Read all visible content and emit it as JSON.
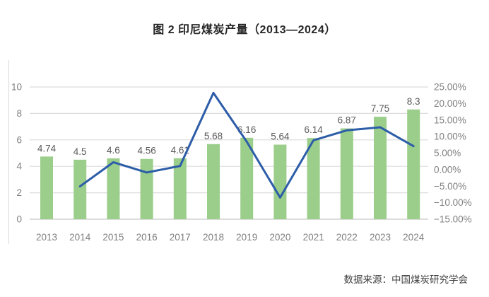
{
  "title": "图 2 印尼煤炭产量（2013—2024）",
  "source": "数据来源：中国煤炭研究学会",
  "colors": {
    "bar": "#9BCE8B",
    "line": "#2D5DA8",
    "grid": "#DCDCDC",
    "axis_line": "#C6C6C6",
    "border_line": "#D9D9D9",
    "axis_text": "#7F7F7F",
    "data_label_text": "#595959",
    "title_text": "#262626",
    "source_text": "#404040",
    "background": "#FFFFFF"
  },
  "chart_data": {
    "type": "bar",
    "title": "图 2 印尼煤炭产量（2013—2024）",
    "categories": [
      "2013",
      "2014",
      "2015",
      "2016",
      "2017",
      "2018",
      "2019",
      "2020",
      "2021",
      "2022",
      "2023",
      "2024"
    ],
    "series": [
      {
        "name": "production-bars",
        "type": "bar",
        "axis": "left",
        "values": [
          4.74,
          4.5,
          4.6,
          4.56,
          4.61,
          5.68,
          6.16,
          5.64,
          6.14,
          6.87,
          7.75,
          8.3
        ],
        "data_labels": [
          "4.74",
          "4.5",
          "4.6",
          "4.56",
          "4.61",
          "5.68",
          "6.16",
          "5.64",
          "6.14",
          "6.87",
          "7.75",
          "8.3"
        ]
      },
      {
        "name": "growth-rate-line",
        "type": "line",
        "axis": "right",
        "start_category": "2014",
        "values_pct": [
          -5.06,
          2.22,
          -0.87,
          1.1,
          23.21,
          8.45,
          -8.44,
          8.87,
          11.89,
          12.81,
          7.1
        ]
      }
    ],
    "left_axis": {
      "min": 0,
      "max": 10,
      "ticks": [
        0,
        2,
        4,
        6,
        8,
        10
      ]
    },
    "right_axis": {
      "min": -15,
      "max": 25,
      "tick_labels": [
        "25.00%",
        "20.00%",
        "15.00%",
        "10.00%",
        "5.00%",
        "0.00%",
        "−5.00%",
        "−10.00%",
        "−15.00%"
      ],
      "tick_values": [
        25,
        20,
        15,
        10,
        5,
        0,
        -5,
        -10,
        -15
      ]
    },
    "grid": true,
    "legend": false
  }
}
